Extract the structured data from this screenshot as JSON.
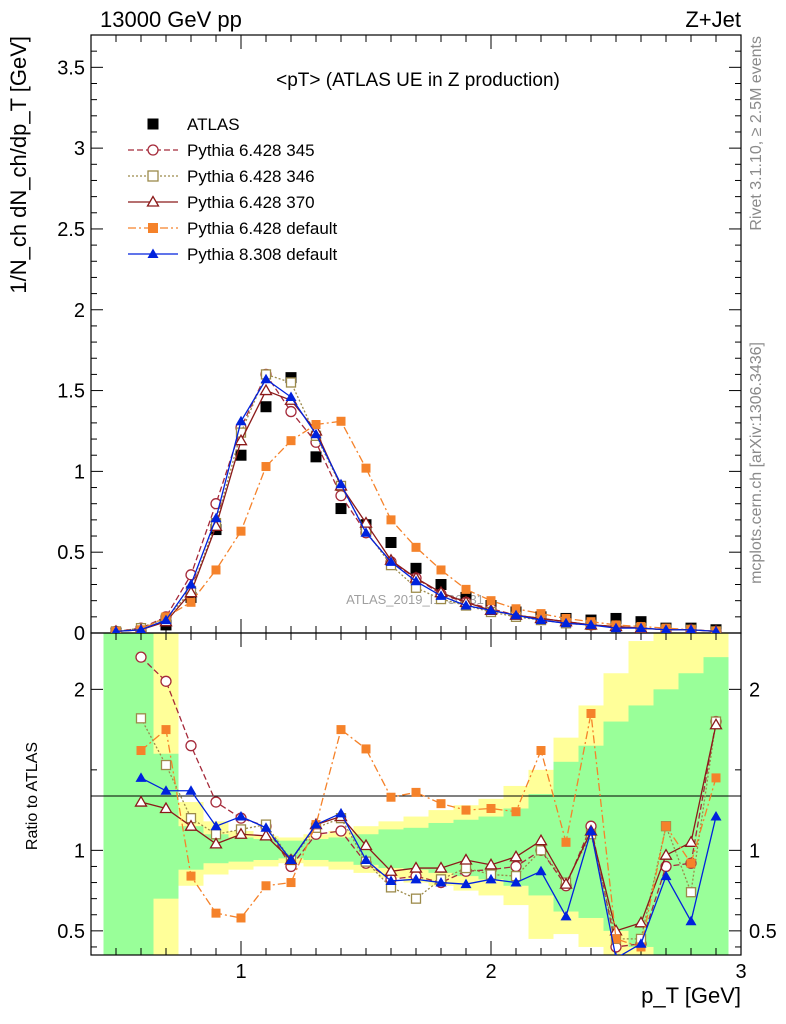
{
  "header": {
    "left": "13000 GeV pp",
    "right": "Z+Jet"
  },
  "side_labels": {
    "rivet": "Rivet 3.1.10, ≥ 2.5M events",
    "mcplots": "mcplots.cern.ch [arXiv:1306.3436]"
  },
  "watermark": "ATLAS_2019_I1736531",
  "colors": {
    "atlas": "#000000",
    "p345": "#a52a3a",
    "p346": "#9c8a4a",
    "p370": "#8b1a1a",
    "p6def": "#f5822a",
    "p8def": "#0022dd",
    "band_inner": "#99ff99",
    "band_outer": "#ffff99"
  },
  "chart_data": [
    {
      "type": "line",
      "title": "<pT> (ATLAS UE in Z production)",
      "xlabel": "p_T [GeV]",
      "ylabel": "1/N_ch dN_ch/dp_T [GeV]",
      "xlim": [
        0.4,
        3.0
      ],
      "ylim": [
        0,
        3.7
      ],
      "y_ticks": [
        "0",
        "0.5",
        "1",
        "1.5",
        "2",
        "2.5",
        "3",
        "3.5"
      ],
      "legend_position": "top-left",
      "x": [
        0.5,
        0.6,
        0.7,
        0.8,
        0.9,
        1.0,
        1.1,
        1.2,
        1.3,
        1.4,
        1.5,
        1.6,
        1.7,
        1.8,
        1.9,
        2.0,
        2.1,
        2.2,
        2.3,
        2.4,
        2.5,
        2.6,
        2.7,
        2.8,
        2.9
      ],
      "series": [
        {
          "name": "ATLAS",
          "marker": "square-filled",
          "values": [
            0.0,
            0.01,
            0.05,
            0.22,
            0.64,
            1.1,
            1.4,
            1.58,
            1.09,
            0.77,
            0.67,
            0.56,
            0.4,
            0.3,
            0.22,
            0.17,
            0.13,
            0.1,
            0.09,
            0.08,
            0.09,
            0.07,
            0.03,
            0.03,
            0.02
          ]
        },
        {
          "name": "Pythia 6.428 345",
          "marker": "circle-open",
          "dash": "6,3",
          "values": [
            0.01,
            0.03,
            0.1,
            0.36,
            0.8,
            1.27,
            1.6,
            1.37,
            1.18,
            0.85,
            0.62,
            0.44,
            0.34,
            0.24,
            0.19,
            0.15,
            0.11,
            0.09,
            0.07,
            0.05,
            0.04,
            0.03,
            0.02,
            0.02,
            0.01
          ]
        },
        {
          "name": "Pythia 6.428 346",
          "marker": "square-open",
          "dash": "2,2",
          "values": [
            0.01,
            0.03,
            0.09,
            0.26,
            0.68,
            1.24,
            1.6,
            1.55,
            1.22,
            0.91,
            0.63,
            0.42,
            0.28,
            0.21,
            0.17,
            0.13,
            0.1,
            0.08,
            0.06,
            0.05,
            0.04,
            0.03,
            0.02,
            0.02,
            0.01
          ]
        },
        {
          "name": "Pythia 6.428 370",
          "marker": "triangle-open",
          "dash": "",
          "values": [
            0.01,
            0.02,
            0.07,
            0.25,
            0.66,
            1.19,
            1.5,
            1.44,
            1.25,
            0.91,
            0.68,
            0.45,
            0.34,
            0.25,
            0.19,
            0.14,
            0.11,
            0.09,
            0.07,
            0.05,
            0.04,
            0.03,
            0.02,
            0.02,
            0.01
          ]
        },
        {
          "name": "Pythia 6.428 default",
          "marker": "square-filled",
          "dash": "8,3,2,3",
          "values": [
            0.01,
            0.02,
            0.1,
            0.19,
            0.39,
            0.63,
            1.03,
            1.19,
            1.29,
            1.31,
            1.02,
            0.7,
            0.53,
            0.39,
            0.27,
            0.2,
            0.15,
            0.12,
            0.09,
            0.07,
            0.05,
            0.04,
            0.03,
            0.02,
            0.01
          ]
        },
        {
          "name": "Pythia 8.308 default",
          "marker": "triangle-filled",
          "dash": "",
          "values": [
            0.01,
            0.02,
            0.08,
            0.3,
            0.71,
            1.31,
            1.57,
            1.46,
            1.23,
            0.92,
            0.62,
            0.44,
            0.32,
            0.23,
            0.17,
            0.14,
            0.11,
            0.08,
            0.06,
            0.05,
            0.03,
            0.03,
            0.02,
            0.02,
            0.01
          ]
        }
      ]
    },
    {
      "type": "line",
      "title": "",
      "xlabel": "p_T [GeV]",
      "ylabel": "Ratio to ATLAS",
      "xlim": [
        0.4,
        3.0
      ],
      "ylim": [
        0.35,
        2.35
      ],
      "y_ticks": [
        "0.5",
        "1",
        "2"
      ],
      "x_ticks": [
        "1",
        "2",
        "3"
      ],
      "x": [
        0.5,
        0.6,
        0.7,
        0.8,
        0.9,
        1.0,
        1.1,
        1.2,
        1.3,
        1.4,
        1.5,
        1.6,
        1.7,
        1.8,
        1.9,
        2.0,
        2.1,
        2.2,
        2.3,
        2.4,
        2.5,
        2.6,
        2.7,
        2.8,
        2.9
      ],
      "band_inner": [
        [
          0.3,
          2.4
        ],
        [
          0.3,
          2.4
        ],
        [
          0.7,
          1.6
        ],
        [
          0.88,
          1.15
        ],
        [
          0.92,
          1.1
        ],
        [
          0.93,
          1.08
        ],
        [
          0.94,
          1.07
        ],
        [
          0.95,
          1.06
        ],
        [
          0.94,
          1.07
        ],
        [
          0.93,
          1.08
        ],
        [
          0.91,
          1.1
        ],
        [
          0.89,
          1.13
        ],
        [
          0.88,
          1.14
        ],
        [
          0.86,
          1.17
        ],
        [
          0.84,
          1.19
        ],
        [
          0.82,
          1.21
        ],
        [
          0.78,
          1.26
        ],
        [
          0.72,
          1.35
        ],
        [
          0.62,
          1.55
        ],
        [
          0.58,
          1.65
        ],
        [
          0.5,
          1.8
        ],
        [
          0.4,
          1.9
        ],
        [
          0.35,
          2.0
        ],
        [
          0.3,
          2.1
        ],
        [
          0.3,
          2.2
        ]
      ],
      "band_outer": [
        [
          0.3,
          2.4
        ],
        [
          0.3,
          2.4
        ],
        [
          0.3,
          2.4
        ],
        [
          0.78,
          1.3
        ],
        [
          0.85,
          1.18
        ],
        [
          0.88,
          1.12
        ],
        [
          0.9,
          1.09
        ],
        [
          0.92,
          1.08
        ],
        [
          0.9,
          1.1
        ],
        [
          0.88,
          1.12
        ],
        [
          0.86,
          1.15
        ],
        [
          0.83,
          1.18
        ],
        [
          0.8,
          1.21
        ],
        [
          0.78,
          1.25
        ],
        [
          0.75,
          1.28
        ],
        [
          0.72,
          1.32
        ],
        [
          0.66,
          1.4
        ],
        [
          0.45,
          1.5
        ],
        [
          0.48,
          1.7
        ],
        [
          0.4,
          1.9
        ],
        [
          0.35,
          2.1
        ],
        [
          0.3,
          2.3
        ],
        [
          0.3,
          2.4
        ],
        [
          0.3,
          2.4
        ],
        [
          0.3,
          2.4
        ]
      ],
      "series": [
        {
          "name": "Pythia 6.428 345",
          "marker": "circle-open",
          "dash": "6,3",
          "values": [
            null,
            2.2,
            2.05,
            1.65,
            1.3,
            1.2,
            1.15,
            0.9,
            1.1,
            1.12,
            0.92,
            0.82,
            0.84,
            0.8,
            0.87,
            0.88,
            0.9,
            1.0,
            0.78,
            1.15,
            0.4,
            0.42,
            0.9,
            0.92,
            1.8
          ]
        },
        {
          "name": "Pythia 6.428 346",
          "marker": "square-open",
          "dash": "2,2",
          "values": [
            null,
            1.82,
            1.53,
            1.2,
            1.1,
            1.13,
            1.16,
            0.94,
            1.14,
            1.2,
            0.93,
            0.77,
            0.7,
            0.82,
            0.89,
            0.85,
            0.84,
            1.0,
            0.8,
            1.1,
            0.45,
            0.45,
            1.15,
            0.74,
            1.8
          ]
        },
        {
          "name": "Pythia 6.428 370",
          "marker": "triangle-open",
          "dash": "",
          "values": [
            null,
            1.3,
            1.26,
            1.15,
            1.04,
            1.1,
            1.09,
            0.94,
            1.16,
            1.21,
            1.03,
            0.87,
            0.89,
            0.89,
            0.94,
            0.91,
            0.96,
            1.06,
            0.79,
            1.12,
            0.5,
            0.55,
            0.97,
            1.05,
            1.78
          ]
        },
        {
          "name": "Pythia 6.428 default",
          "marker": "square-filled",
          "dash": "8,3,2,3",
          "values": [
            null,
            1.62,
            1.75,
            0.84,
            0.61,
            0.58,
            0.78,
            0.8,
            1.16,
            1.75,
            1.63,
            1.33,
            1.36,
            1.29,
            1.25,
            1.26,
            1.24,
            1.62,
            1.05,
            1.85,
            0.45,
            0.4,
            1.15,
            0.92,
            1.45
          ]
        },
        {
          "name": "Pythia 8.308 default",
          "marker": "triangle-filled",
          "dash": "",
          "values": [
            null,
            1.45,
            1.37,
            1.37,
            1.15,
            1.21,
            1.14,
            0.94,
            1.16,
            1.23,
            0.94,
            0.81,
            0.82,
            0.8,
            0.79,
            0.82,
            0.8,
            0.87,
            0.59,
            1.12,
            0.33,
            0.42,
            0.84,
            0.56,
            1.21
          ]
        }
      ]
    }
  ]
}
